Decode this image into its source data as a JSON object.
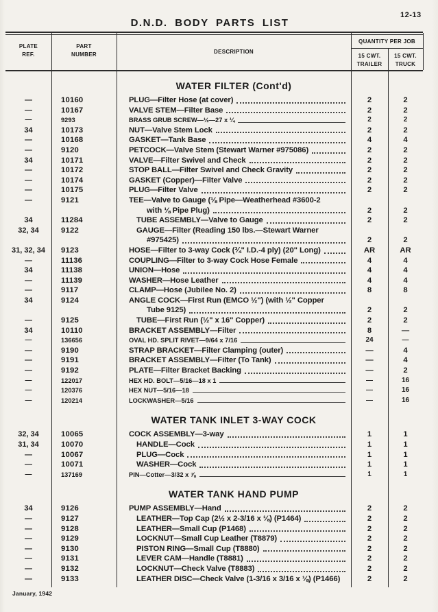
{
  "page": {
    "number": "12-13",
    "title": "D.N.D. BODY PARTS LIST",
    "footer": "January, 1942"
  },
  "table": {
    "headers": {
      "plate": "PLATE\nREF.",
      "part": "PART\nNUMBER",
      "description": "DESCRIPTION",
      "qty_group": "QUANTITY PER JOB",
      "qty_trailer": "15 CWT.\nTRAILER",
      "qty_truck": "15 CWT.\nTRUCK"
    },
    "sections": [
      {
        "title": "WATER FILTER (Cont'd)",
        "rows": [
          {
            "plate": "—",
            "part": "10160",
            "desc": "PLUG—Filter Hose (at cover)",
            "trailer": "2",
            "truck": "2"
          },
          {
            "plate": "—",
            "part": "10167",
            "desc": "VALVE STEM—Filter Base",
            "trailer": "2",
            "truck": "2"
          },
          {
            "plate": "—",
            "part": "9293",
            "desc": "BRASS GRUB SCREW—½—27 x ¼",
            "small": true,
            "trailer": "2",
            "truck": "2"
          },
          {
            "plate": "34",
            "part": "10173",
            "desc": "NUT—Valve Stem Lock",
            "trailer": "2",
            "truck": "2"
          },
          {
            "plate": "—",
            "part": "10168",
            "desc": "GASKET—Tank Base",
            "trailer": "4",
            "truck": "4"
          },
          {
            "plate": "—",
            "part": "9120",
            "desc": "PETCOCK—Valve Stem (Stewart Warner #975086)",
            "trailer": "2",
            "truck": "2"
          },
          {
            "plate": "34",
            "part": "10171",
            "desc": "VALVE—Filter Swivel and Check",
            "trailer": "2",
            "truck": "2"
          },
          {
            "plate": "—",
            "part": "10172",
            "desc": "STOP BALL—Filter Swivel and Check Gravity",
            "trailer": "2",
            "truck": "2"
          },
          {
            "plate": "—",
            "part": "10174",
            "desc": "GASKET (Copper)—Filter Valve",
            "trailer": "2",
            "truck": "2"
          },
          {
            "plate": "—",
            "part": "10175",
            "desc": "PLUG—Filter Valve",
            "trailer": "2",
            "truck": "2"
          },
          {
            "plate": "—",
            "part": "9121",
            "desc": "TEE—Valve to Gauge (⅛ Pipe—Weatherhead #3600-2",
            "desc2": "with ⅛ Pipe Plug)",
            "trailer": "2",
            "truck": "2"
          },
          {
            "plate": "34",
            "part": "11284",
            "desc": "TUBE ASSEMBLY—Valve to Gauge",
            "indent": 1,
            "trailer": "2",
            "truck": "2"
          },
          {
            "plate": "32, 34",
            "part": "9122",
            "desc": "GAUGE—Filter (Reading 150 lbs.—Stewart Warner",
            "desc2": "#975425)",
            "indent": 1,
            "trailer": "2",
            "truck": "2"
          },
          {
            "plate": "31, 32, 34",
            "part": "9123",
            "desc": "HOSE—Filter to 3-way Cock (¾\" I.D.-4 ply) (20\" Long)",
            "trailer": "AR",
            "truck": "AR"
          },
          {
            "plate": "—",
            "part": "11136",
            "desc": "COUPLING—Filter to 3-way Cock Hose Female",
            "trailer": "4",
            "truck": "4"
          },
          {
            "plate": "34",
            "part": "11138",
            "desc": "UNION—Hose",
            "trailer": "4",
            "truck": "4"
          },
          {
            "plate": "—",
            "part": "11139",
            "desc": "WASHER—Hose Leather",
            "trailer": "4",
            "truck": "4"
          },
          {
            "plate": "—",
            "part": "9117",
            "desc": "CLAMP—Hose (Jubilee No. 2)",
            "trailer": "8",
            "truck": "8"
          },
          {
            "plate": "34",
            "part": "9124",
            "desc": "ANGLE COCK—First Run (EMCO ½\") (with ½\" Copper",
            "desc2": "Tube 9125)",
            "trailer": "2",
            "truck": "2"
          },
          {
            "plate": "—",
            "part": "9125",
            "desc": "TUBE—First Run (½\" x 16\" Copper)",
            "indent": 1,
            "trailer": "2",
            "truck": "2"
          },
          {
            "plate": "34",
            "part": "10110",
            "desc": "BRACKET ASSEMBLY—Filter",
            "trailer": "8",
            "truck": "—"
          },
          {
            "plate": "—",
            "part": "136656",
            "desc": "OVAL HD. SPLIT RIVET—9/64 x 7/16",
            "small": true,
            "trailer": "24",
            "truck": "—"
          },
          {
            "plate": "—",
            "part": "9190",
            "desc": "STRAP BRACKET—Filter Clamping (outer)",
            "trailer": "—",
            "truck": "4"
          },
          {
            "plate": "—",
            "part": "9191",
            "desc": "BRACKET ASSEMBLY—Filter (To Tank)",
            "trailer": "—",
            "truck": "4"
          },
          {
            "plate": "—",
            "part": "9192",
            "desc": "PLATE—Filter Bracket Backing",
            "trailer": "—",
            "truck": "2"
          },
          {
            "plate": "—",
            "part": "122017",
            "desc": "HEX HD. BOLT—5/16—18 x 1",
            "small": true,
            "trailer": "—",
            "truck": "16"
          },
          {
            "plate": "—",
            "part": "120376",
            "desc": "HEX NUT—5/16—18",
            "small": true,
            "trailer": "—",
            "truck": "16"
          },
          {
            "plate": "—",
            "part": "120214",
            "desc": "LOCKWASHER—5/16",
            "small": true,
            "trailer": "—",
            "truck": "16"
          }
        ]
      },
      {
        "title": "WATER TANK INLET 3-WAY COCK",
        "rows": [
          {
            "plate": "32, 34",
            "part": "10065",
            "desc": "COCK ASSEMBLY—3-way",
            "trailer": "1",
            "truck": "1"
          },
          {
            "plate": "31, 34",
            "part": "10070",
            "desc": "HANDLE—Cock",
            "indent": 1,
            "trailer": "1",
            "truck": "1"
          },
          {
            "plate": "—",
            "part": "10067",
            "desc": "PLUG—Cock",
            "indent": 1,
            "trailer": "1",
            "truck": "1"
          },
          {
            "plate": "—",
            "part": "10071",
            "desc": "WASHER—Cock",
            "indent": 1,
            "trailer": "1",
            "truck": "1"
          },
          {
            "plate": "—",
            "part": "137169",
            "desc": "PIN—Cotter—3/32 x ⅞",
            "small": true,
            "trailer": "1",
            "truck": "1"
          }
        ]
      },
      {
        "title": "WATER TANK HAND PUMP",
        "rows": [
          {
            "plate": "34",
            "part": "9126",
            "desc": "PUMP ASSEMBLY—Hand",
            "trailer": "2",
            "truck": "2"
          },
          {
            "plate": "—",
            "part": "9127",
            "desc": "LEATHER—Top Cap (2½ x 2-3/16 x ⅛) (P1464)",
            "indent": 1,
            "trailer": "2",
            "truck": "2"
          },
          {
            "plate": "—",
            "part": "9128",
            "desc": "LEATHER—Small Cup (P1468)",
            "indent": 1,
            "trailer": "2",
            "truck": "2"
          },
          {
            "plate": "—",
            "part": "9129",
            "desc": "LOCKNUT—Small Cup Leather (T8879)",
            "indent": 1,
            "trailer": "2",
            "truck": "2"
          },
          {
            "plate": "—",
            "part": "9130",
            "desc": "PISTON RING—Small Cup (T8880)",
            "indent": 1,
            "trailer": "2",
            "truck": "2"
          },
          {
            "plate": "—",
            "part": "9131",
            "desc": "LEVER CAM—Handle (T8881)",
            "indent": 1,
            "trailer": "2",
            "truck": "2"
          },
          {
            "plate": "—",
            "part": "9132",
            "desc": "LOCKNUT—Check Valve (T8883)",
            "indent": 1,
            "trailer": "2",
            "truck": "2"
          },
          {
            "plate": "—",
            "part": "9133",
            "desc": "LEATHER DISC—Check Valve (1-3/16 x 3/16 x ⅛) (P1466)",
            "indent": 1,
            "noleader": true,
            "trailer": "2",
            "truck": "2"
          }
        ]
      }
    ]
  }
}
